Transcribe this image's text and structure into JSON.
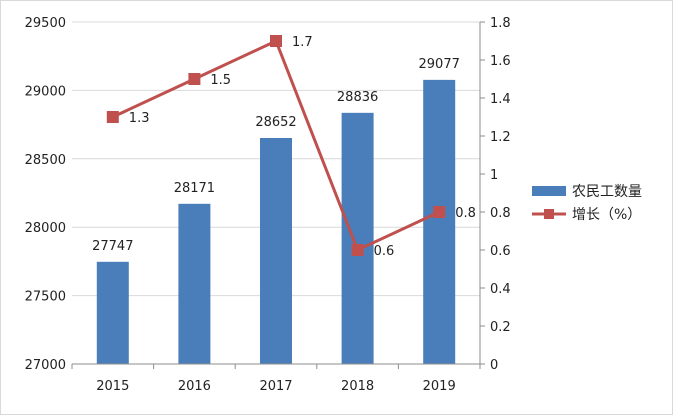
{
  "chart_data": {
    "type": "bar",
    "categories": [
      "2015",
      "2016",
      "2017",
      "2018",
      "2019"
    ],
    "series": [
      {
        "name": "农民工数量",
        "type": "bar",
        "axis": "left",
        "values": [
          27747,
          28171,
          28652,
          28836,
          29077
        ],
        "color": "#4a7ebb"
      },
      {
        "name": "增长（%）",
        "type": "line",
        "axis": "right",
        "values": [
          1.3,
          1.5,
          1.7,
          0.6,
          0.8
        ],
        "color": "#c0504d"
      }
    ],
    "y_left": {
      "min": 27000,
      "max": 29500,
      "ticks": [
        "27000",
        "27500",
        "28000",
        "28500",
        "29000",
        "29500"
      ]
    },
    "y_right": {
      "min": 0,
      "max": 1.8,
      "ticks": [
        "0",
        "0.2",
        "0.4",
        "0.6",
        "0.8",
        "1",
        "1.2",
        "1.4",
        "1.6",
        "1.8"
      ]
    },
    "bar_labels": [
      "27747",
      "28171",
      "28652",
      "28836",
      "29077"
    ],
    "line_labels": [
      "1.3",
      "1.5",
      "1.7",
      "0.6",
      "0.8"
    ],
    "grid": true,
    "legend": "right"
  }
}
